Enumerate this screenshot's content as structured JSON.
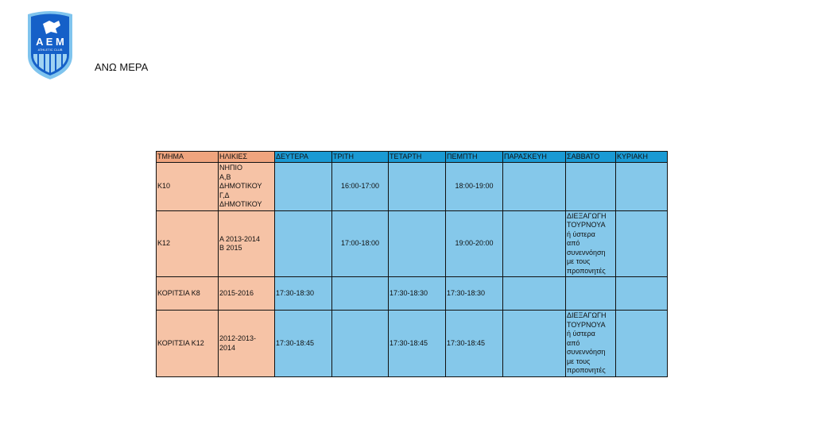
{
  "header": {
    "logo_text": "ΑΕΜ ATHLETIC CLUB ΜΥΚΟΝΟΣ",
    "place": "ΑΝΩ ΜΕΡΑ"
  },
  "colors": {
    "header_salmon": "#efa47e",
    "header_blue": "#1a9ad4",
    "cell_salmon": "#f6c3a6",
    "cell_blue": "#85c8ea"
  },
  "table": {
    "columns": [
      "ΤΜΗΜΑ",
      "ΗΛΙΚΙΕΣ",
      "ΔΕΥΤΕΡΑ",
      "ΤΡΙΤΗ",
      "ΤΕΤΑΡΤΗ",
      "ΠΕΜΠΤΗ",
      "ΠΑΡΑΣΚΕΥΗ",
      "ΣΑΒΒΑΤΟ",
      "ΚΥΡΙΑΚΗ"
    ],
    "rows": [
      [
        "K10",
        "ΝΗΠΙΟ\nΑ,Β\nΔΗΜΟΤΙΚΟΥ\nΓ,Δ\nΔΗΜΟΤΙΚΟΥ",
        "",
        "16:00-17:00",
        "",
        "18:00-19:00",
        "",
        "",
        ""
      ],
      [
        "K12",
        "Α  2013-2014\nΒ 2015",
        "",
        "17:00-18:00",
        "",
        "19:00-20:00",
        "",
        "ΔΙΕΞΑΓΩΓΗ\nΤΟΥΡΝΟΥΑ\nή ύστερα\nαπό\nσυνεννόηση\nμε τους\nπροπονητές",
        ""
      ],
      [
        "ΚΟΡΙΤΣΙΑ  Κ8",
        "2015-2016",
        "17:30-18:30",
        "",
        "17:30-18:30",
        "17:30-18:30",
        "",
        "",
        ""
      ],
      [
        "ΚΟΡΙΤΣΙΑ Κ12",
        "2012-2013-\n2014",
        "17:30-18:45",
        "",
        "17:30-18:45",
        "17:30-18:45",
        "",
        "ΔΙΕΞΑΓΩΓΗ\nΤΟΥΡΝΟΥΑ\nή ύστερα\nαπό\nσυνεννόηση\nμε τους\nπροπονητές",
        ""
      ]
    ]
  }
}
